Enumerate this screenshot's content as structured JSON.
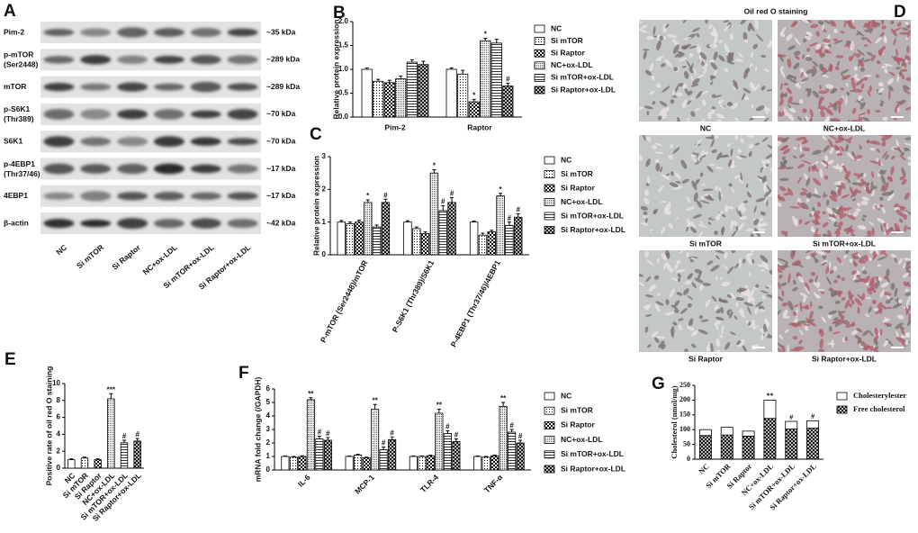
{
  "blot": {
    "panel": "A",
    "rows": [
      {
        "name": "Pim-2",
        "size": "~35 kDa"
      },
      {
        "name": "p-mTOR",
        "site": "(Ser2448)",
        "size": "~289 kDa"
      },
      {
        "name": "mTOR",
        "size": "~289 kDa"
      },
      {
        "name": "p-S6K1",
        "site": "(Thr389)",
        "size": "~70 kDa"
      },
      {
        "name": "S6K1",
        "size": "~70 kDa"
      },
      {
        "name": "p-4EBP1",
        "site": "(Thr37/46)",
        "size": "~17 kDa"
      },
      {
        "name": "4EBP1",
        "size": "~17 kDa"
      },
      {
        "name": "β-actin",
        "size": "~42 kDa"
      }
    ],
    "lanes": [
      "NC",
      "Si mTOR",
      "Si Raptor",
      "NC+ox-LDL",
      "Si mTOR+ox-LDL",
      "Si Raptor+ox-LDL"
    ]
  },
  "staining": {
    "panel": "D",
    "title": "Oil red O staining",
    "images": [
      "NC",
      "NC+ox-LDL",
      "Si mTOR",
      "Si mTOR+ox-LDL",
      "Si Raptor",
      "Si Raptor+ox-LDL"
    ]
  },
  "chart_data": [
    {
      "type": "bar",
      "panel": "B",
      "y_label": "Relative protein expression",
      "categories": [
        "Pim-2",
        "Raptor"
      ],
      "ylim": [
        0,
        2
      ],
      "yticks": [
        {
          "value": 0,
          "label": "0.0"
        },
        0.5,
        {
          "value": 1,
          "label": "1.0"
        },
        1.5,
        {
          "value": 2,
          "label": "2.0"
        }
      ],
      "series": [
        {
          "name": "NC",
          "pattern": "white",
          "values": [
            1.0,
            1.0
          ],
          "errors": [
            0.03,
            0.03
          ],
          "marks": [
            null,
            null
          ]
        },
        {
          "name": "Si mTOR",
          "pattern": "dots",
          "values": [
            0.75,
            0.9
          ],
          "errors": [
            0.04,
            0.08
          ],
          "marks": [
            null,
            null
          ]
        },
        {
          "name": "Si Raptor",
          "pattern": "check",
          "values": [
            0.72,
            0.32
          ],
          "errors": [
            0.05,
            0.05
          ],
          "marks": [
            null,
            "*"
          ]
        },
        {
          "name": "NC+ox-LDL",
          "pattern": "fine",
          "values": [
            0.8,
            1.6
          ],
          "errors": [
            0.06,
            0.05
          ],
          "marks": [
            null,
            "*"
          ]
        },
        {
          "name": "Si mTOR+ox-LDL",
          "pattern": "hline",
          "values": [
            1.15,
            1.55
          ],
          "errors": [
            0.05,
            0.08
          ],
          "marks": [
            null,
            null
          ]
        },
        {
          "name": "Si Raptor+ox-LDL",
          "pattern": "cross",
          "values": [
            1.1,
            0.65
          ],
          "errors": [
            0.07,
            0.06
          ],
          "marks": [
            null,
            "#"
          ]
        }
      ]
    },
    {
      "type": "bar",
      "panel": "C",
      "y_label": "Relative protein expression",
      "categories": [
        "P-mTOR (Ser2448)/mTOR",
        "P-S6K1 (Thr389)/S6K1",
        "P-4EBP1 (Thr37/46)/4EBP1"
      ],
      "ylim": [
        0,
        3
      ],
      "yticks": [
        0,
        1,
        2,
        3
      ],
      "series": [
        {
          "name": "NC",
          "pattern": "white",
          "values": [
            1.0,
            1.0,
            1.0
          ],
          "errors": [
            0.05,
            0.04,
            0.03
          ],
          "marks": [
            null,
            null,
            null
          ]
        },
        {
          "name": "Si mTOR",
          "pattern": "dots",
          "values": [
            0.95,
            0.8,
            0.6
          ],
          "errors": [
            0.05,
            0.05,
            0.06
          ],
          "marks": [
            null,
            null,
            null
          ]
        },
        {
          "name": "Si Raptor",
          "pattern": "check",
          "values": [
            1.0,
            0.65,
            0.7
          ],
          "errors": [
            0.06,
            0.05,
            0.05
          ],
          "marks": [
            null,
            null,
            null
          ]
        },
        {
          "name": "NC+ox-LDL",
          "pattern": "fine",
          "values": [
            1.6,
            2.5,
            1.8
          ],
          "errors": [
            0.08,
            0.1,
            0.08
          ],
          "marks": [
            "*",
            "*",
            "*"
          ]
        },
        {
          "name": "Si mTOR+ox-LDL",
          "pattern": "hline",
          "values": [
            0.85,
            1.35,
            0.9
          ],
          "errors": [
            0.06,
            0.15,
            0.1
          ],
          "marks": [
            null,
            "#",
            "#"
          ]
        },
        {
          "name": "Si Raptor+ox-LDL",
          "pattern": "cross",
          "values": [
            1.6,
            1.6,
            1.15
          ],
          "errors": [
            0.1,
            0.15,
            0.1
          ],
          "marks": [
            "#",
            "#",
            "#"
          ]
        }
      ]
    },
    {
      "type": "bar",
      "panel": "E",
      "y_label": "Positive rate of oil red O staining",
      "categories": [
        "NC",
        "Si mTOR",
        "Si Raptor",
        "NC+ox-LDL",
        "Si mTOR+ox-LDL",
        "Si Raptor+ox-LDL"
      ],
      "values": [
        1.0,
        1.2,
        1.0,
        8.2,
        3.0,
        3.2
      ],
      "errors": [
        0.1,
        0.1,
        0.1,
        0.6,
        0.3,
        0.3
      ],
      "marks": [
        null,
        null,
        null,
        "***",
        "#",
        "#"
      ],
      "patterns": [
        "white",
        "dots",
        "check",
        "fine",
        "hline",
        "cross"
      ],
      "ylim": [
        0,
        10
      ],
      "yticks": [
        0,
        2,
        4,
        6,
        8,
        10
      ]
    },
    {
      "type": "bar",
      "panel": "F",
      "y_label": "mRNA fold change (/GAPDH)",
      "categories": [
        "IL-6",
        "MCP-1",
        "TLR-4",
        "TNF-α"
      ],
      "ylim": [
        0,
        6
      ],
      "yticks": [
        0,
        1,
        2,
        3,
        4,
        5,
        6
      ],
      "series": [
        {
          "name": "NC",
          "pattern": "white",
          "values": [
            1.0,
            1.0,
            1.0,
            1.0
          ],
          "errors": [
            0.04,
            0.04,
            0.04,
            0.04
          ],
          "marks": [
            null,
            null,
            null,
            null
          ]
        },
        {
          "name": "Si mTOR",
          "pattern": "dots",
          "values": [
            0.95,
            1.1,
            1.0,
            0.95
          ],
          "errors": [
            0.05,
            0.06,
            0.04,
            0.05
          ],
          "marks": [
            null,
            null,
            null,
            null
          ]
        },
        {
          "name": "Si Raptor",
          "pattern": "check",
          "values": [
            1.0,
            0.9,
            1.05,
            1.05
          ],
          "errors": [
            0.05,
            0.05,
            0.05,
            0.05
          ],
          "marks": [
            null,
            null,
            null,
            null
          ]
        },
        {
          "name": "NC+ox-LDL",
          "pattern": "fine",
          "values": [
            5.2,
            4.5,
            4.2,
            4.7
          ],
          "errors": [
            0.15,
            0.35,
            0.3,
            0.3
          ],
          "marks": [
            "**",
            "**",
            "**",
            "**"
          ]
        },
        {
          "name": "Si mTOR+ox-LDL",
          "pattern": "hline",
          "values": [
            2.3,
            1.5,
            2.7,
            2.8
          ],
          "errors": [
            0.2,
            0.2,
            0.2,
            0.2
          ],
          "marks": [
            "#",
            "#",
            "#",
            "#"
          ]
        },
        {
          "name": "Si Raptor+ox-LDL",
          "pattern": "cross",
          "values": [
            2.2,
            2.25,
            2.1,
            2.0
          ],
          "errors": [
            0.2,
            0.2,
            0.2,
            0.2
          ],
          "marks": [
            "#",
            "#",
            "#",
            "#"
          ]
        }
      ]
    },
    {
      "type": "bar",
      "panel": "G",
      "stacked": true,
      "y_label": "Cholesterol (nmol/mg)",
      "categories": [
        "NC",
        "Si mTOR",
        "Si Raptor",
        "NC+ox-LDL",
        "Si mTOR+ox-LDL",
        "Si Raptor+ox-LDL"
      ],
      "ylim": [
        0,
        250
      ],
      "yticks": [
        0,
        50,
        100,
        150,
        200,
        250
      ],
      "series": [
        {
          "name": "Free cholesterol",
          "pattern": "cross",
          "values": [
            80,
            82,
            78,
            138,
            102,
            105
          ]
        },
        {
          "name": "Cholesterylester",
          "pattern": "white",
          "values": [
            20,
            26,
            17,
            62,
            26,
            25
          ],
          "marks": [
            null,
            null,
            null,
            "**",
            "#",
            "#"
          ]
        }
      ]
    }
  ]
}
